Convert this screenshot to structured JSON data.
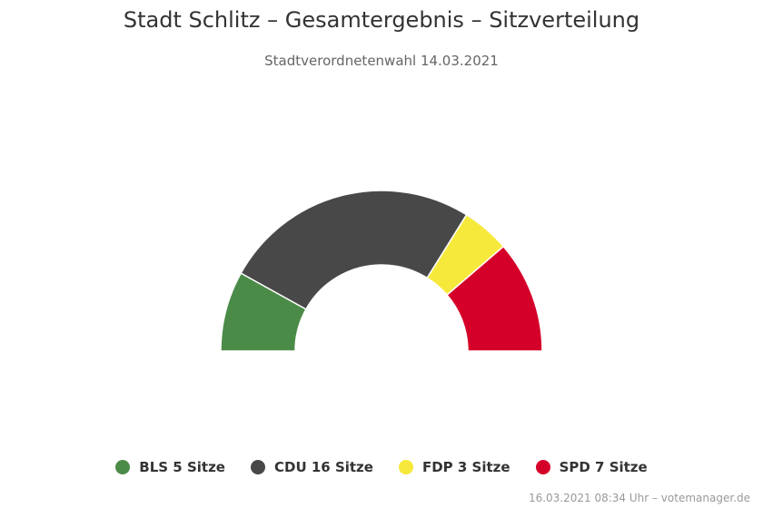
{
  "chart_data": {
    "type": "pie",
    "variant": "parliament-semicircle",
    "title": "Stadt Schlitz – Gesamtergebnis – Sitzverteilung",
    "subtitle": "Stadtverordnetenwahl 14.03.2021",
    "categories": [
      "BLS",
      "CDU",
      "FDP",
      "SPD"
    ],
    "values": [
      5,
      16,
      3,
      7
    ],
    "colors": [
      "#4b8b48",
      "#484848",
      "#f7e93b",
      "#d50029"
    ],
    "legend_labels": [
      "BLS 5 Sitze",
      "CDU 16 Sitze",
      "FDP 3 Sitze",
      "SPD 7 Sitze"
    ],
    "legend_position": "bottom",
    "total_seats": 31
  },
  "credit": "16.03.2021 08:34 Uhr – votemanager.de"
}
